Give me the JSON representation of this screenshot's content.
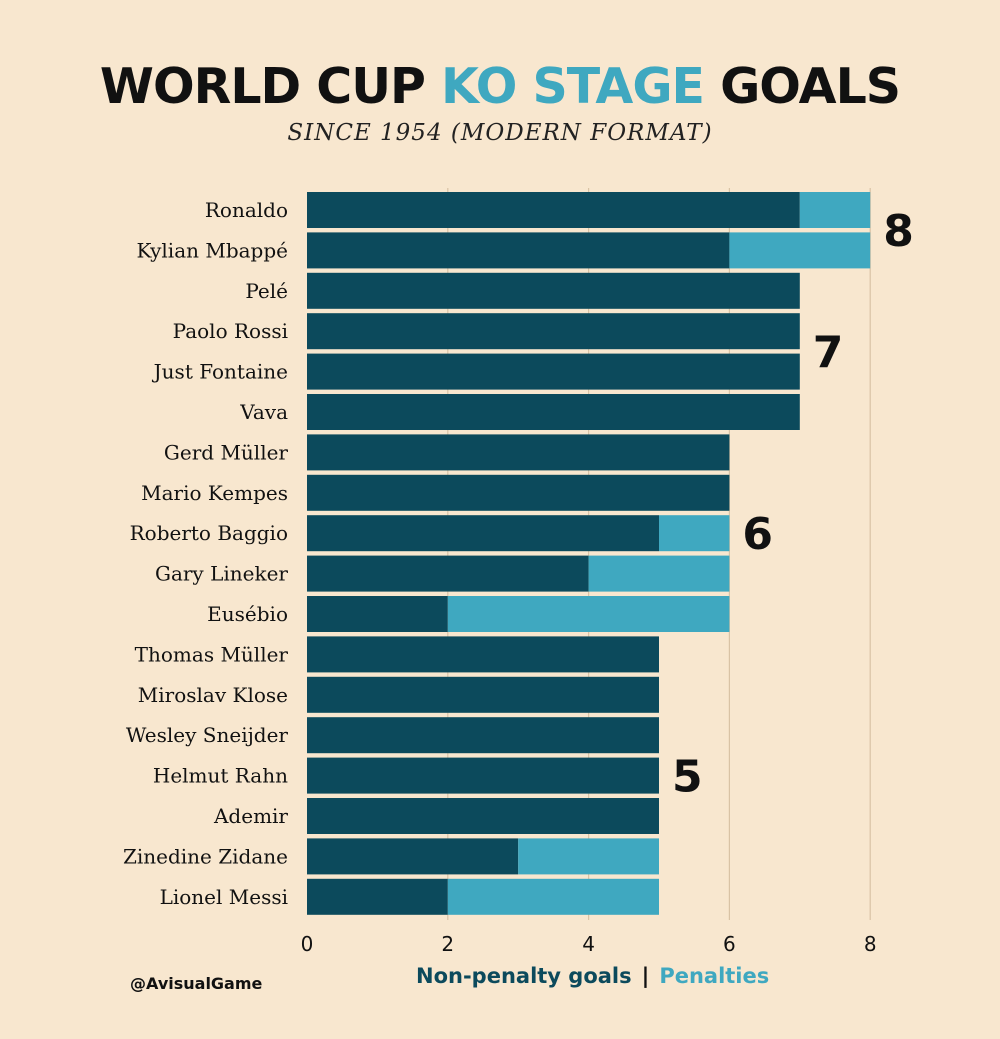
{
  "title": {
    "part1": "WORLD CUP ",
    "part2": "KO STAGE",
    "part3": " GOALS"
  },
  "subtitle": "SINCE 1954 (MODERN FORMAT)",
  "footer": {
    "handle": "@AvisualGame"
  },
  "legend": {
    "non_penalty": "Non-penalty goals",
    "separator": "|",
    "penalties": "Penalties"
  },
  "colors": {
    "background": "#f8e7cf",
    "non_penalty": "#0c4a5c",
    "penalties": "#3fa8c0",
    "gridline": "#d9c3a5",
    "text": "#111111"
  },
  "chart_data": {
    "type": "bar",
    "orientation": "horizontal",
    "stacked": true,
    "title": "WORLD CUP KO STAGE GOALS",
    "subtitle": "SINCE 1954 (MODERN FORMAT)",
    "categories": [
      "Ronaldo",
      "Kylian Mbappé",
      "Pelé",
      "Paolo Rossi",
      "Just Fontaine",
      "Vava",
      "Gerd Müller",
      "Mario Kempes",
      "Roberto Baggio",
      "Gary Lineker",
      "Eusébio",
      "Thomas Müller",
      "Miroslav Klose",
      "Wesley Sneijder",
      "Helmut Rahn",
      "Ademir",
      "Zinedine Zidane",
      "Lionel Messi"
    ],
    "series": [
      {
        "name": "Non-penalty goals",
        "values": [
          7,
          6,
          7,
          7,
          7,
          7,
          6,
          6,
          5,
          4,
          2,
          5,
          5,
          5,
          5,
          5,
          3,
          2
        ]
      },
      {
        "name": "Penalties",
        "values": [
          1,
          2,
          0,
          0,
          0,
          0,
          0,
          0,
          1,
          2,
          4,
          0,
          0,
          0,
          0,
          0,
          2,
          3
        ]
      }
    ],
    "xlim": [
      0,
      8
    ],
    "xticks": [
      "0",
      "2",
      "4",
      "6",
      "8"
    ],
    "xtick_values": [
      0,
      2,
      4,
      6,
      8
    ],
    "grid": true,
    "group_labels": [
      {
        "text": "8",
        "value": 8,
        "first": 0,
        "last": 1
      },
      {
        "text": "7",
        "value": 7,
        "first": 2,
        "last": 5
      },
      {
        "text": "6",
        "value": 6,
        "first": 6,
        "last": 10
      },
      {
        "text": "5",
        "value": 5,
        "first": 11,
        "last": 17
      }
    ]
  }
}
